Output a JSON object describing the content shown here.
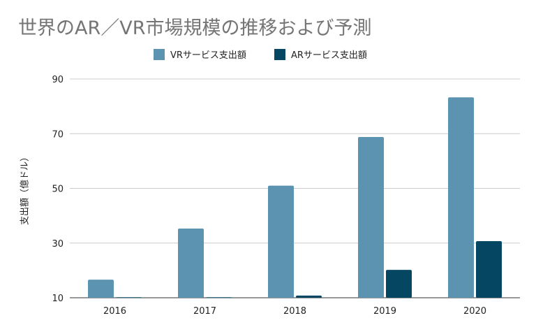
{
  "chart_data": {
    "type": "bar",
    "title": "世界のAR／VR市場規模の推移および予測",
    "xlabel": "",
    "ylabel": "支出額（億ドル）",
    "categories": [
      "2016",
      "2017",
      "2018",
      "2019",
      "2020"
    ],
    "series": [
      {
        "name": "VRサービス支出額",
        "color": "#5b93b1",
        "values": [
          16.6,
          35.3,
          51.0,
          68.8,
          83.3
        ]
      },
      {
        "name": "ARサービス支出額",
        "color": "#054663",
        "values": [
          10.2,
          10.2,
          10.8,
          20.2,
          30.7
        ]
      }
    ],
    "ylim": [
      10,
      90
    ],
    "yticks": [
      "10",
      "30",
      "50",
      "70",
      "90"
    ],
    "grid": true,
    "legend_position": "top"
  }
}
